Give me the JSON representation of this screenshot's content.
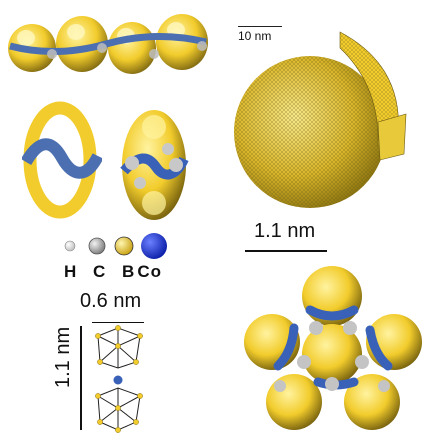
{
  "colors": {
    "boron_yellow": "#f2cc2c",
    "cobalt_blue": "#1838e0",
    "carbon_gray": "#a9a9a9",
    "hydrogen_white": "#efefef",
    "backbone_blue": "#4b6fb0"
  },
  "legend": {
    "atoms": [
      {
        "symbol": "H",
        "color_key": "hydrogen_white"
      },
      {
        "symbol": "C",
        "color_key": "carbon_gray"
      },
      {
        "symbol": "B",
        "color_key": "boron_yellow"
      },
      {
        "symbol": "Co",
        "color_key": "cobalt_blue"
      }
    ]
  },
  "scalebars": {
    "sphere": "10 nm",
    "middle": "1.1 nm",
    "width": "0.6 nm",
    "height": "1.1 nm"
  }
}
